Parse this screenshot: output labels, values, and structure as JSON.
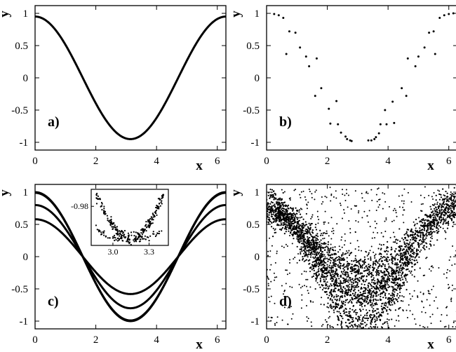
{
  "chart_data": [
    {
      "panel": "a",
      "type": "line",
      "panel_label": "a)",
      "xlabel": "x",
      "ylabel": "y",
      "xlim": [
        0,
        6.2832
      ],
      "ylim": [
        -1.12,
        1.12
      ],
      "xticks": [
        0,
        2,
        4,
        6
      ],
      "yticks": [
        1,
        0.5,
        0,
        -0.5,
        -1
      ],
      "ytick_labels": [
        "1",
        "0.5",
        "0",
        "-0.5",
        "-1"
      ],
      "series": [
        {
          "function": "cosine",
          "amplitude": 0.95,
          "offset": 0
        }
      ]
    },
    {
      "panel": "b",
      "type": "scatter",
      "panel_label": "b)",
      "xlabel": "x",
      "ylabel": "y",
      "xlim": [
        0,
        6.2832
      ],
      "ylim": [
        -1.12,
        1.12
      ],
      "xticks": [
        0,
        2,
        4,
        6
      ],
      "yticks": [
        1,
        0.5,
        0,
        -0.5,
        -1
      ],
      "ytick_labels": [
        "1",
        "0.5",
        "0",
        "-0.5",
        "-1"
      ],
      "points": [
        [
          0.25,
          0.99
        ],
        [
          0.4,
          0.97
        ],
        [
          0.55,
          0.93
        ],
        [
          0.75,
          0.72
        ],
        [
          0.65,
          0.37
        ],
        [
          0.95,
          0.7
        ],
        [
          1.1,
          0.47
        ],
        [
          1.3,
          0.33
        ],
        [
          1.4,
          0.18
        ],
        [
          1.65,
          0.3
        ],
        [
          1.6,
          -0.28
        ],
        [
          1.8,
          -0.16
        ],
        [
          2.05,
          -0.48
        ],
        [
          2.1,
          -0.71
        ],
        [
          2.3,
          -0.36
        ],
        [
          2.35,
          -0.72
        ],
        [
          2.45,
          -0.85
        ],
        [
          2.6,
          -0.91
        ],
        [
          2.75,
          -0.97
        ],
        [
          2.8,
          -0.98
        ],
        [
          2.65,
          -0.95
        ],
        [
          3.35,
          -0.97
        ],
        [
          3.45,
          -0.97
        ],
        [
          3.55,
          -0.95
        ],
        [
          3.6,
          -0.92
        ],
        [
          3.7,
          -0.86
        ],
        [
          3.75,
          -0.72
        ],
        [
          3.9,
          -0.5
        ],
        [
          3.95,
          -0.72
        ],
        [
          4.15,
          -0.37
        ],
        [
          4.2,
          -0.7
        ],
        [
          4.45,
          -0.16
        ],
        [
          4.6,
          -0.28
        ],
        [
          4.65,
          0.3
        ],
        [
          4.9,
          0.18
        ],
        [
          5.0,
          0.33
        ],
        [
          5.2,
          0.47
        ],
        [
          5.35,
          0.7
        ],
        [
          5.55,
          0.37
        ],
        [
          5.5,
          0.72
        ],
        [
          5.7,
          0.93
        ],
        [
          5.85,
          0.97
        ],
        [
          6.0,
          0.99
        ],
        [
          6.15,
          1.0
        ]
      ]
    },
    {
      "panel": "c",
      "type": "line",
      "panel_label": "c)",
      "xlabel": "x",
      "ylabel": "y",
      "xlim": [
        0,
        6.2832
      ],
      "ylim": [
        -1.12,
        1.12
      ],
      "xticks": [
        0,
        2,
        4,
        6
      ],
      "yticks": [
        1,
        0.5,
        0,
        -0.5,
        -1
      ],
      "ytick_labels": [
        "1",
        "0.5",
        "0",
        "-0.5",
        "-1"
      ],
      "series": [
        {
          "function": "cosine",
          "amplitude": 1.0,
          "offset": 0
        },
        {
          "function": "cosine",
          "amplitude": 0.99,
          "offset": 0
        },
        {
          "function": "cosine",
          "amplitude": 0.8,
          "offset": 0
        },
        {
          "function": "cosine",
          "amplitude": 0.58,
          "offset": 0
        }
      ],
      "inset": {
        "type": "scatter",
        "xlim": [
          2.82,
          3.46
        ],
        "ylim": [
          -1.003,
          -0.97
        ],
        "xticks": [
          3.0,
          3.3
        ],
        "xtick_labels": [
          "3.0",
          "3.3"
        ],
        "yticks": [
          -0.98
        ],
        "ytick_labels": [
          "-0.98"
        ]
      }
    },
    {
      "panel": "d",
      "type": "scatter",
      "panel_label": "d)",
      "xlabel": "x",
      "ylabel": "y",
      "xlim": [
        0,
        6.2832
      ],
      "ylim": [
        -1.12,
        1.12
      ],
      "xticks": [
        0,
        2,
        4,
        6
      ],
      "yticks": [
        1,
        0.5,
        0,
        -0.5,
        -1
      ],
      "ytick_labels": [
        "1",
        "0.5",
        "0",
        "-0.5",
        "-1"
      ],
      "bands": [
        {
          "amplitude": 0.65,
          "offset": 0.05,
          "x_from": 0.0,
          "x_to": 4.8,
          "spread": 0.09
        },
        {
          "amplitude": 0.92,
          "offset": -0.12,
          "x_from": 0.0,
          "x_to": 6.28,
          "spread": 0.14
        },
        {
          "amplitude": 0.48,
          "offset": 0.25,
          "x_from": 0.3,
          "x_to": 6.28,
          "spread": 0.12
        }
      ]
    }
  ]
}
